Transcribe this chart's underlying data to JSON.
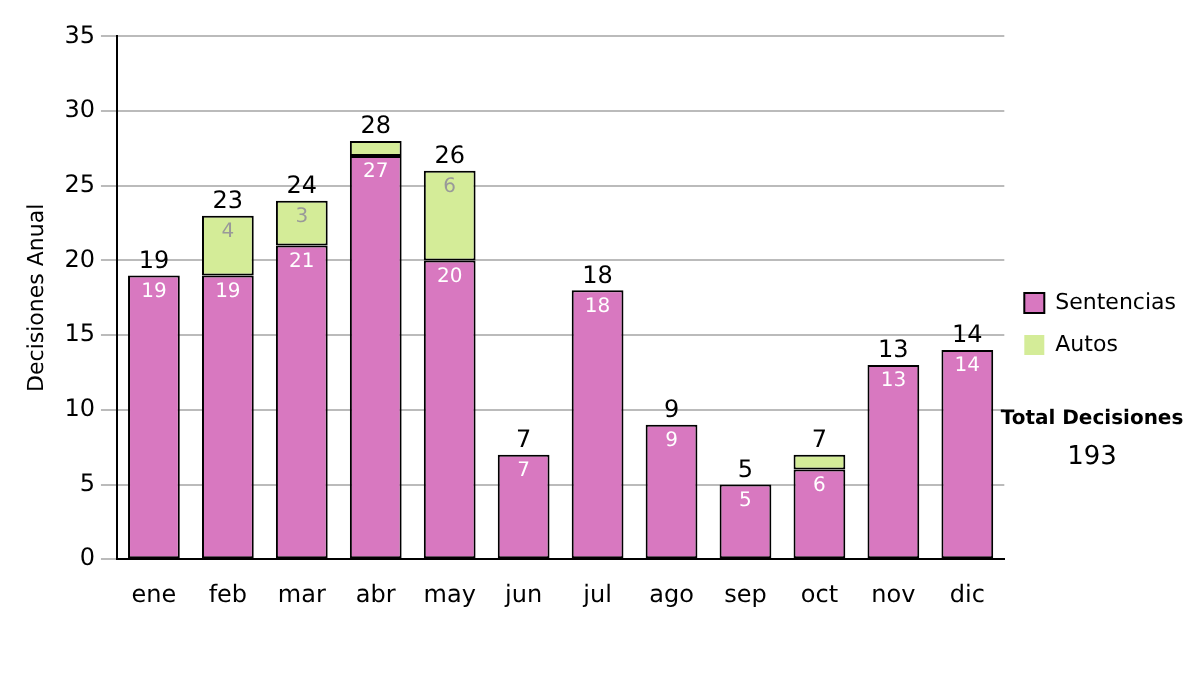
{
  "chart_data": {
    "type": "bar",
    "stacked": true,
    "ylabel": "Decisiones Anual",
    "categories": [
      "ene",
      "feb",
      "mar",
      "abr",
      "may",
      "jun",
      "jul",
      "ago",
      "sep",
      "oct",
      "nov",
      "dic"
    ],
    "series": [
      {
        "name": "Sentencias",
        "color": "#d878c0",
        "values": [
          19,
          19,
          21,
          27,
          20,
          7,
          18,
          9,
          5,
          6,
          13,
          14
        ],
        "value_labels": [
          "19",
          "19",
          "21",
          "27",
          "20",
          "7",
          "18",
          "9",
          "5",
          "6",
          "13",
          "14"
        ]
      },
      {
        "name": "Autos",
        "color": "#d4ec98",
        "values": [
          0,
          4,
          3,
          1,
          6,
          0,
          0,
          0,
          0,
          1,
          0,
          0
        ],
        "value_labels": [
          null,
          "4",
          "3",
          null,
          "6",
          null,
          null,
          null,
          null,
          null,
          null,
          null
        ]
      }
    ],
    "totals": [
      "19",
      "23",
      "24",
      "28",
      "26",
      "7",
      "18",
      "9",
      "5",
      "7",
      "13",
      "14"
    ],
    "ylim": [
      0,
      35
    ],
    "yticks": [
      0,
      5,
      10,
      15,
      20,
      25,
      30,
      35
    ],
    "grid": "y",
    "legend": "right",
    "annotations": [
      "Total Decisiones",
      "193"
    ]
  }
}
